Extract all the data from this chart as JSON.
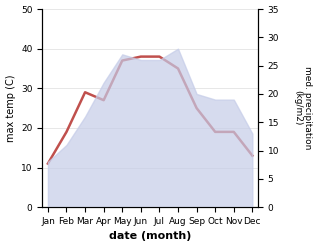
{
  "months": [
    "Jan",
    "Feb",
    "Mar",
    "Apr",
    "May",
    "Jun",
    "Jul",
    "Aug",
    "Sep",
    "Oct",
    "Nov",
    "Dec"
  ],
  "temperature": [
    11,
    19,
    29,
    27,
    37,
    38,
    38,
    35,
    25,
    19,
    19,
    13
  ],
  "precipitation": [
    8,
    11,
    16,
    22,
    27,
    26,
    26,
    28,
    20,
    19,
    19,
    13
  ],
  "temp_color": "#c0504d",
  "precip_color": "#c5cce8",
  "left_label": "max temp (C)",
  "right_label": "med. precipitation\n(kg/m2)",
  "xlabel": "date (month)",
  "ylim_left": [
    0,
    50
  ],
  "ylim_right": [
    0,
    35
  ],
  "yticks_left": [
    0,
    10,
    20,
    30,
    40,
    50
  ],
  "yticks_right": [
    0,
    5,
    10,
    15,
    20,
    25,
    30,
    35
  ],
  "bg_color": "#ffffff"
}
